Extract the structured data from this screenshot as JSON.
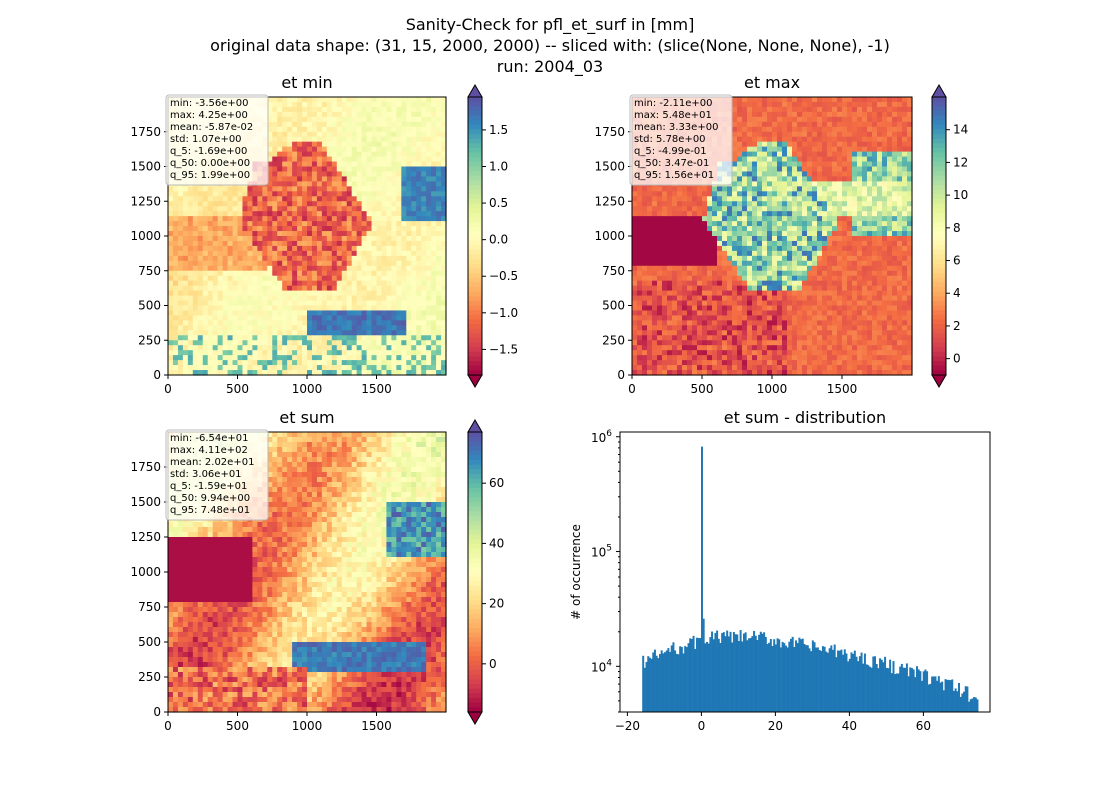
{
  "figure": {
    "title_lines": [
      "Sanity-Check for pfl_et_surf in [mm]",
      "original data shape: (31, 15, 2000, 2000) -- sliced with: (slice(None, None, None), -1)",
      "run: 2004_03"
    ]
  },
  "colormap": {
    "name": "Spectral",
    "colors": [
      "#9e0142",
      "#d53e4f",
      "#f46d43",
      "#fdae61",
      "#fee08b",
      "#ffffbf",
      "#e6f598",
      "#abdda4",
      "#66c2a5",
      "#3288bd",
      "#5e4fa2"
    ]
  },
  "chart_data": [
    {
      "type": "heatmap",
      "title": "et min",
      "xlim": [
        0,
        2000
      ],
      "ylim": [
        0,
        2000
      ],
      "x_ticks": [
        0,
        500,
        1000,
        1500
      ],
      "y_ticks": [
        0,
        250,
        500,
        750,
        1000,
        1250,
        1500,
        1750
      ],
      "colorbar": {
        "min": -1.85,
        "max": 1.95,
        "ticks": [
          -1.5,
          -1.0,
          -0.5,
          0.0,
          0.5,
          1.0,
          1.5
        ],
        "tick_labels": [
          "−1.5",
          "−1.0",
          "−0.5",
          "0.0",
          "0.5",
          "1.0",
          "1.5"
        ],
        "extend": "both"
      },
      "stats": [
        "min: -3.56e+00",
        "max: 4.25e+00",
        "mean: -5.87e-02",
        "std: 1.07e+00",
        "q_5: -1.69e+00",
        "q_50: 0.00e+00",
        "q_95: 1.99e+00"
      ]
    },
    {
      "type": "heatmap",
      "title": "et max",
      "xlim": [
        0,
        2000
      ],
      "ylim": [
        0,
        2000
      ],
      "x_ticks": [
        0,
        500,
        1000,
        1500
      ],
      "y_ticks": [
        0,
        250,
        500,
        750,
        1000,
        1250,
        1500,
        1750
      ],
      "colorbar": {
        "min": -1,
        "max": 16,
        "ticks": [
          0,
          2,
          4,
          6,
          8,
          10,
          12,
          14
        ],
        "tick_labels": [
          "0",
          "2",
          "4",
          "6",
          "8",
          "10",
          "12",
          "14"
        ],
        "extend": "both"
      },
      "stats": [
        "min: -2.11e+00",
        "max: 5.48e+01",
        "mean: 3.33e+00",
        "std: 5.78e+00",
        "q_5: -4.99e-01",
        "q_50: 3.47e-01",
        "q_95: 1.56e+01"
      ]
    },
    {
      "type": "heatmap",
      "title": "et sum",
      "xlim": [
        0,
        2000
      ],
      "ylim": [
        0,
        2000
      ],
      "x_ticks": [
        0,
        500,
        1000,
        1500
      ],
      "y_ticks": [
        0,
        250,
        500,
        750,
        1000,
        1250,
        1500,
        1750
      ],
      "colorbar": {
        "min": -16,
        "max": 77,
        "ticks": [
          0,
          20,
          40,
          60
        ],
        "tick_labels": [
          "0",
          "20",
          "40",
          "60"
        ],
        "extend": "both"
      },
      "stats": [
        "min: -6.54e+01",
        "max: 4.11e+02",
        "mean: 2.02e+01",
        "std: 3.06e+01",
        "q_5: -1.59e+01",
        "q_50: 9.94e+00",
        "q_95: 7.48e+01"
      ]
    },
    {
      "type": "bar",
      "title": "et sum - distribution",
      "ylabel": "# of occurrence",
      "log_y": true,
      "xlim": [
        -22,
        78
      ],
      "ylim": [
        4000,
        1100000
      ],
      "x_ticks": [
        -20,
        0,
        20,
        40,
        60
      ],
      "x_tick_labels": [
        "−20",
        "0",
        "20",
        "40",
        "60"
      ],
      "y_ticks": [
        10000,
        100000,
        1000000
      ],
      "y_tick_base": "10",
      "y_tick_exponents": [
        "4",
        "5",
        "6"
      ],
      "bin_range": [
        -16,
        74.8
      ],
      "spike": {
        "x": 0,
        "count": 820000
      },
      "second_spike": {
        "x": 0.4,
        "count": 26000
      },
      "counts_start": 11000,
      "counts_peak": 20000,
      "counts_end": 5200,
      "bar_color": "#1f77b4"
    }
  ]
}
